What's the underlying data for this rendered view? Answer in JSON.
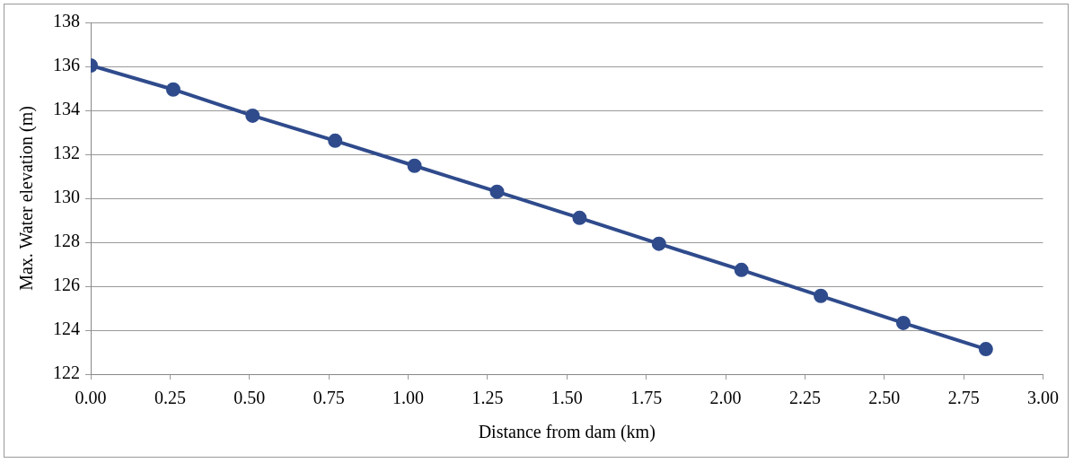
{
  "chart_data": {
    "type": "line",
    "xlabel": "Distance from dam (km)",
    "ylabel": "Max. Water elevation (m)",
    "x": [
      0,
      0.26,
      0.51,
      0.77,
      1.02,
      1.28,
      1.54,
      1.79,
      2.05,
      2.3,
      2.56,
      2.82
    ],
    "series": [
      {
        "color": "#2f4b8c",
        "values": [
          136.04,
          134.95,
          133.76,
          132.62,
          131.48,
          130.3,
          129.11,
          127.93,
          126.74,
          125.56,
          124.33,
          123.14
        ]
      }
    ],
    "xlim": [
      0,
      3
    ],
    "xticks": [
      {
        "value": 0,
        "label": "0.00"
      },
      {
        "value": 0.25,
        "label": "0.25"
      },
      {
        "value": 0.5,
        "label": "0.50"
      },
      {
        "value": 0.75,
        "label": "0.75"
      },
      {
        "value": 1,
        "label": "1.00"
      },
      {
        "value": 1.25,
        "label": "1.25"
      },
      {
        "value": 1.5,
        "label": "1.50"
      },
      {
        "value": 1.75,
        "label": "1.75"
      },
      {
        "value": 2,
        "label": "2.00"
      },
      {
        "value": 2.25,
        "label": "2.25"
      },
      {
        "value": 2.5,
        "label": "2.50"
      },
      {
        "value": 2.75,
        "label": "2.75"
      },
      {
        "value": 3,
        "label": "3.00"
      }
    ],
    "ylim": [
      122,
      138
    ],
    "yticks": [
      122,
      124,
      126,
      128,
      130,
      132,
      134,
      136,
      138
    ],
    "grid": "y",
    "legend": false,
    "marker": "circle",
    "line_style": "solid"
  }
}
